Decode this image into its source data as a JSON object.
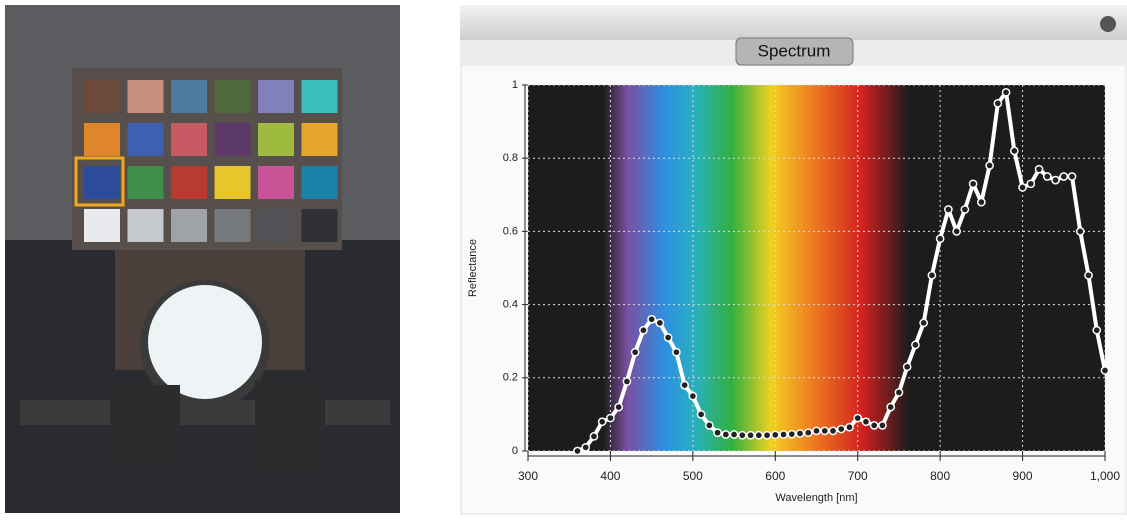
{
  "panel_title": "Spectrum",
  "chart_data": {
    "type": "line",
    "x_label": "Wavelength [nm]",
    "y_label": "Reflectance",
    "x": [
      360,
      370,
      380,
      390,
      400,
      410,
      420,
      430,
      440,
      450,
      460,
      470,
      480,
      490,
      500,
      510,
      520,
      530,
      540,
      550,
      560,
      570,
      580,
      590,
      600,
      610,
      620,
      630,
      640,
      650,
      660,
      670,
      680,
      690,
      700,
      710,
      720,
      730,
      740,
      750,
      760,
      770,
      780,
      790,
      800,
      810,
      820,
      830,
      840,
      850,
      860,
      870,
      880,
      890,
      900,
      910,
      920,
      930,
      940,
      950,
      960,
      970,
      980,
      990,
      1000
    ],
    "values": [
      0.0,
      0.01,
      0.04,
      0.08,
      0.09,
      0.12,
      0.19,
      0.27,
      0.33,
      0.36,
      0.35,
      0.31,
      0.27,
      0.18,
      0.15,
      0.1,
      0.07,
      0.05,
      0.045,
      0.045,
      0.043,
      0.043,
      0.043,
      0.043,
      0.044,
      0.045,
      0.046,
      0.048,
      0.05,
      0.055,
      0.055,
      0.055,
      0.06,
      0.065,
      0.09,
      0.08,
      0.07,
      0.07,
      0.12,
      0.16,
      0.23,
      0.29,
      0.35,
      0.48,
      0.58,
      0.66,
      0.6,
      0.66,
      0.73,
      0.68,
      0.78,
      0.95,
      0.98,
      0.82,
      0.72,
      0.73,
      0.77,
      0.75,
      0.74,
      0.75,
      0.75,
      0.6,
      0.48,
      0.33,
      0.22
    ],
    "color": "#ffffff",
    "xlim": [
      300,
      1000
    ],
    "xticks": [
      300,
      400,
      500,
      600,
      700,
      800,
      900,
      {
        "value": 1000,
        "label": "1,000"
      }
    ],
    "ylim": [
      0,
      1
    ],
    "yticks": [
      0,
      0.2,
      0.4,
      0.6,
      0.8,
      1
    ],
    "grid": true
  }
}
